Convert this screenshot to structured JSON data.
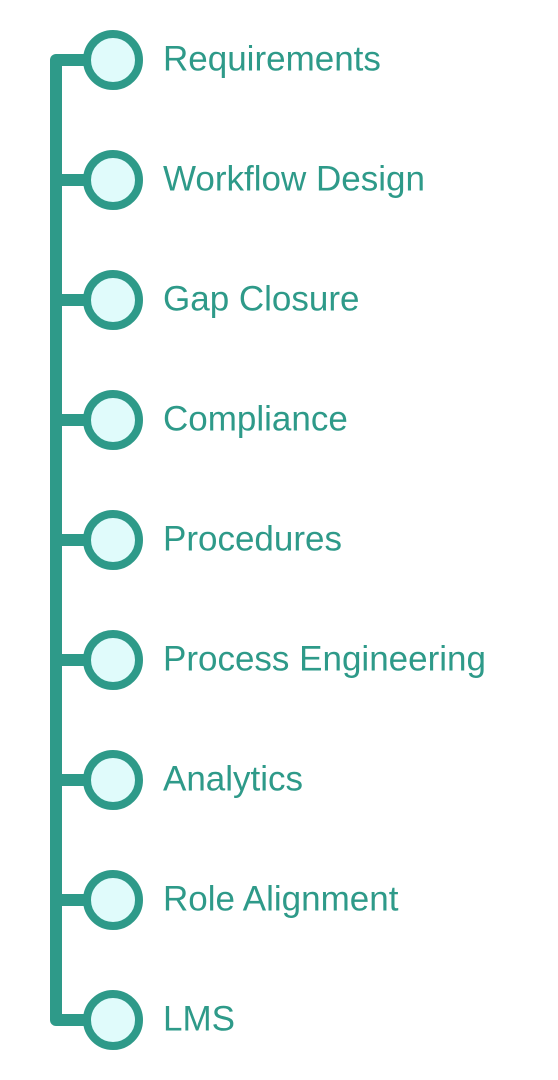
{
  "theme": {
    "line_color": "#2e9a89",
    "node_fill": "#e0fbfb",
    "label_color": "#2e9a89"
  },
  "items": [
    {
      "label": "Requirements"
    },
    {
      "label": "Workflow Design"
    },
    {
      "label": "Gap Closure"
    },
    {
      "label": "Compliance"
    },
    {
      "label": "Procedures"
    },
    {
      "label": "Process Engineering"
    },
    {
      "label": "Analytics"
    },
    {
      "label": "Role Alignment"
    },
    {
      "label": "LMS"
    }
  ]
}
